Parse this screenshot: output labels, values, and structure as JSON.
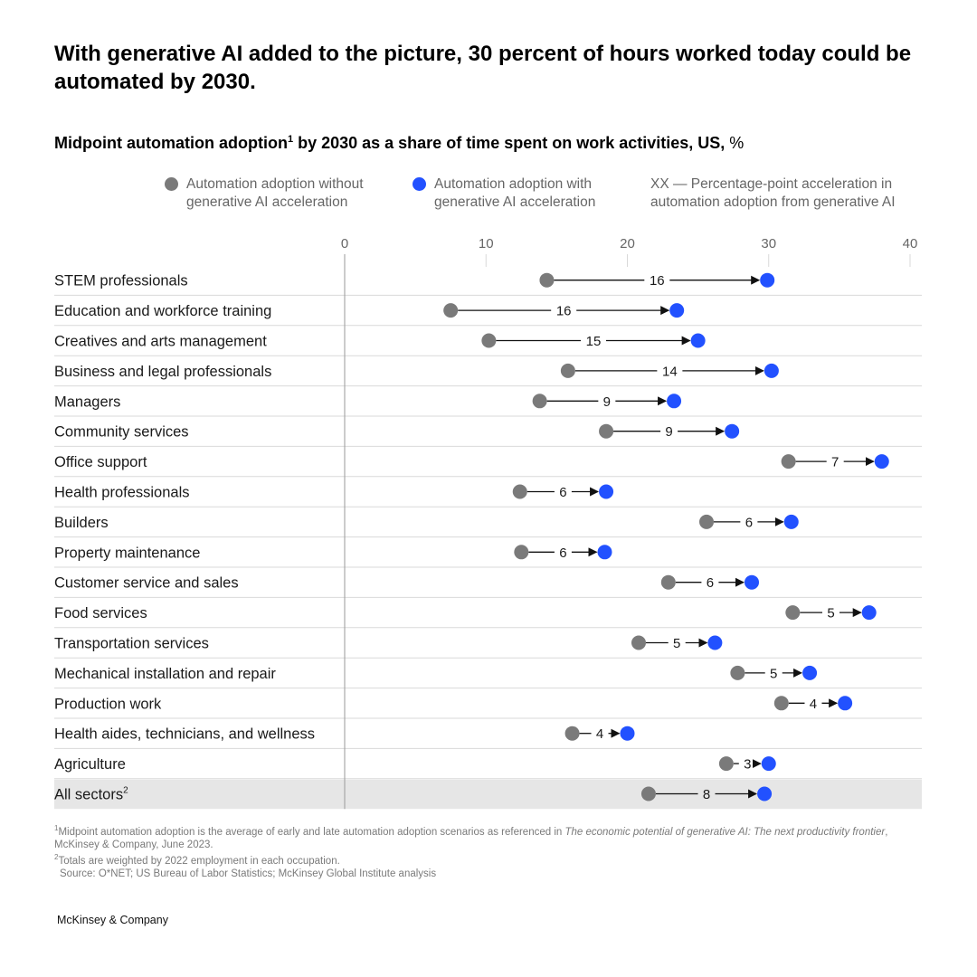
{
  "title": "With generative AI added to the picture, 30 percent of hours worked today could be automated by 2030.",
  "subtitle": {
    "text_before": "Midpoint automation adoption",
    "footnote_marker": "1",
    "text_after": " by 2030 as a share of time spent on work activities, US,",
    "unit": " %"
  },
  "legend": {
    "without": "Automation adoption without\ngenerative AI acceleration",
    "with": "Automation adoption with\ngenerative AI acceleration",
    "key": "XX — Percentage-point acceleration in automation adoption from generative AI"
  },
  "colors": {
    "without": "#7a7a7a",
    "with": "#2251ff",
    "highlight_row": "#e6e6e6",
    "gridline": "#d9d9d9",
    "axis": "#9a9a9a"
  },
  "chart_data": {
    "type": "dumbbell",
    "title": "Midpoint automation adoption by 2030 as a share of time spent on work activities, US, %",
    "xlim": [
      0,
      40
    ],
    "ticks": [
      0,
      10,
      20,
      30,
      40
    ],
    "xlabel": "%",
    "series": [
      {
        "name": "Automation adoption without generative AI acceleration",
        "key": "without"
      },
      {
        "name": "Automation adoption with generative AI acceleration",
        "key": "with"
      }
    ],
    "rows": [
      {
        "label": "STEM professionals",
        "without": 14.3,
        "with": 29.9,
        "diff": "16"
      },
      {
        "label": "Education and workforce training",
        "without": 7.5,
        "with": 23.5,
        "diff": "16"
      },
      {
        "label": "Creatives and arts management",
        "without": 10.2,
        "with": 25.0,
        "diff": "15"
      },
      {
        "label": "Business and legal professionals",
        "without": 15.8,
        "with": 30.2,
        "diff": "14"
      },
      {
        "label": "Managers",
        "without": 13.8,
        "with": 23.3,
        "diff": "9"
      },
      {
        "label": "Community services",
        "without": 18.5,
        "with": 27.4,
        "diff": "9"
      },
      {
        "label": "Office support",
        "without": 31.4,
        "with": 38.0,
        "diff": "7"
      },
      {
        "label": "Health professionals",
        "without": 12.4,
        "with": 18.5,
        "diff": "6"
      },
      {
        "label": "Builders",
        "without": 25.6,
        "with": 31.6,
        "diff": "6"
      },
      {
        "label": "Property maintenance",
        "without": 12.5,
        "with": 18.4,
        "diff": "6"
      },
      {
        "label": "Customer service and sales",
        "without": 22.9,
        "with": 28.8,
        "diff": "6"
      },
      {
        "label": "Food services",
        "without": 31.7,
        "with": 37.1,
        "diff": "5"
      },
      {
        "label": "Transportation services",
        "without": 20.8,
        "with": 26.2,
        "diff": "5"
      },
      {
        "label": "Mechanical installation and repair",
        "without": 27.8,
        "with": 32.9,
        "diff": "5"
      },
      {
        "label": "Production work",
        "without": 30.9,
        "with": 35.4,
        "diff": "4"
      },
      {
        "label": "Health aides, technicians, and wellness",
        "without": 16.1,
        "with": 20.0,
        "diff": "4"
      },
      {
        "label": "Agriculture",
        "without": 27.0,
        "with": 30.0,
        "diff": "3"
      },
      {
        "label": "All sectors",
        "label_sup": "2",
        "without": 21.5,
        "with": 29.7,
        "diff": "8",
        "highlight": true
      }
    ]
  },
  "footnotes": {
    "note1_marker": "1",
    "note1_before": "Midpoint automation adoption is the average of early and late automation adoption scenarios as referenced in ",
    "note1_italic": "The economic potential of generative AI: The next productivity frontier",
    "note1_after": ", McKinsey & Company, June 2023.",
    "note2_marker": "2",
    "note2_text": "Totals are weighted by 2022 employment in each occupation.",
    "source": "Source: O*NET; US Bureau of Labor Statistics; McKinsey Global Institute analysis"
  },
  "brand": "McKinsey & Company"
}
